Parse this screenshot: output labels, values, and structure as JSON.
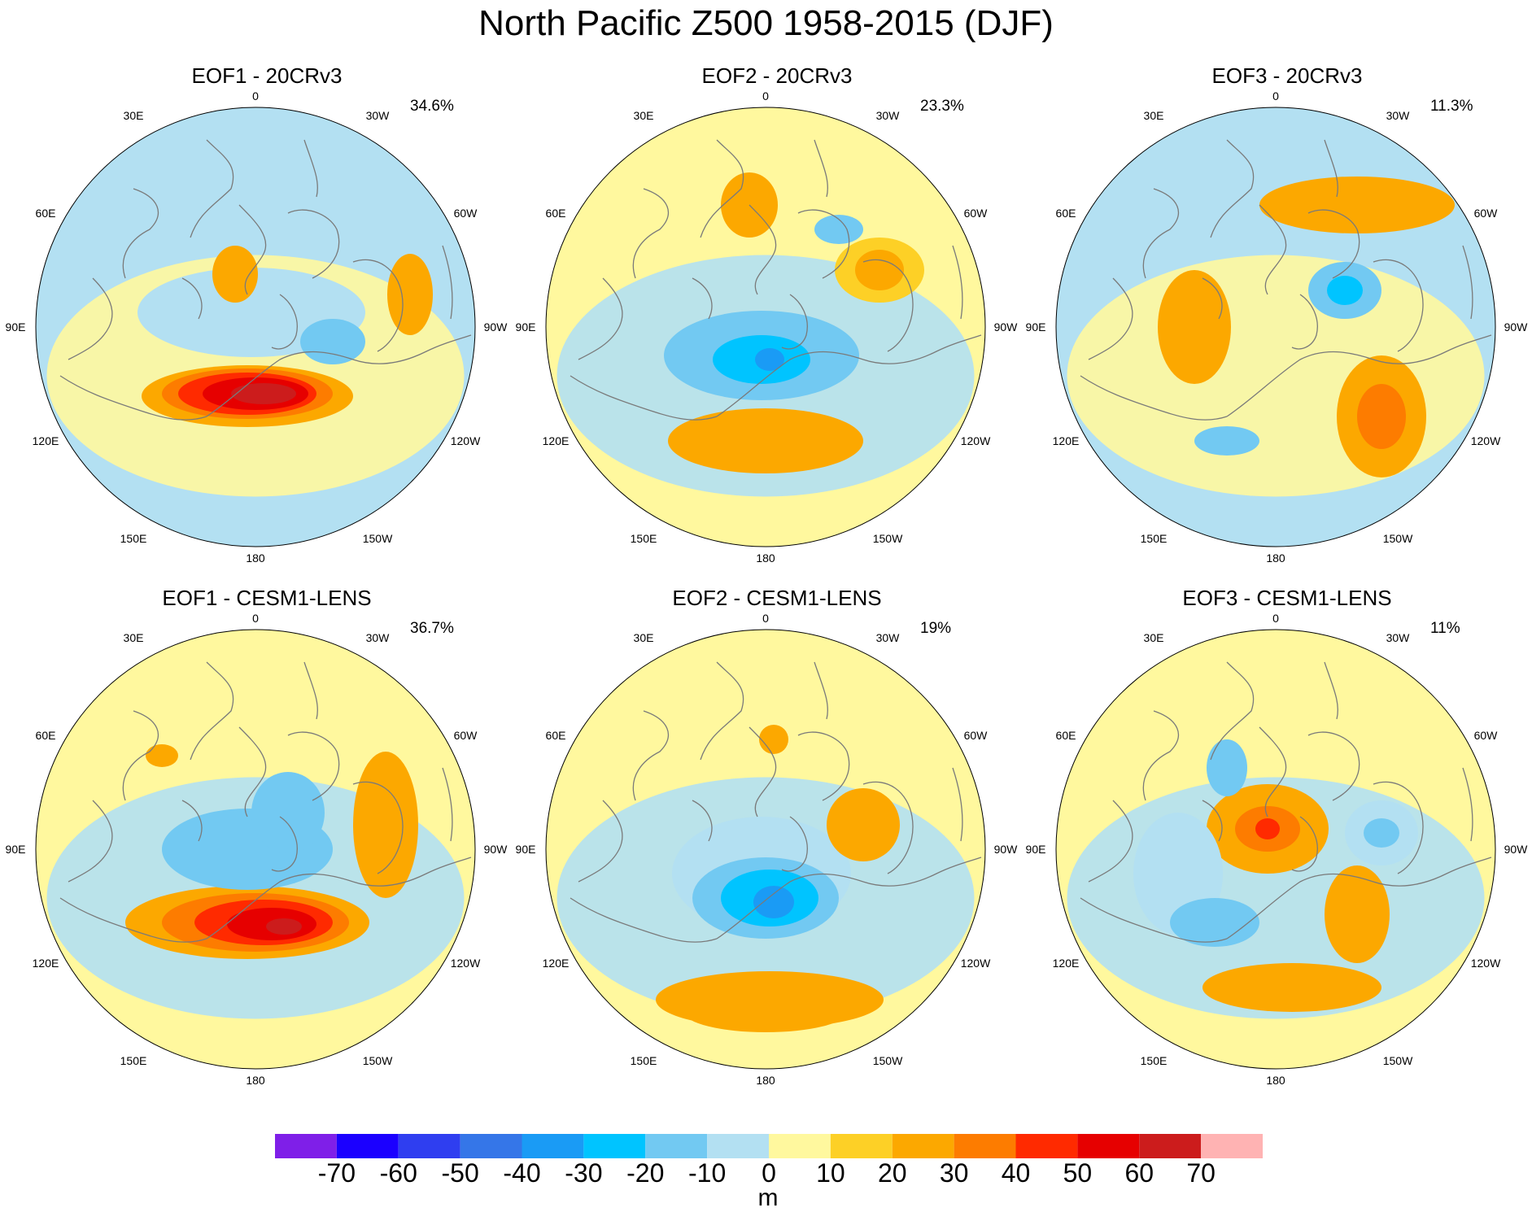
{
  "title": "North Pacific Z500 1958-2015 (DJF)",
  "lon_labels": {
    "top": "0",
    "top_left": "30E",
    "top_right": "30W",
    "left_upper": "60E",
    "right_upper": "60W",
    "left": "90E",
    "right": "90W",
    "left_lower": "120E",
    "right_lower": "120W",
    "bottom_left": "150E",
    "bottom_right": "150W",
    "bottom": "180"
  },
  "panels": [
    {
      "title": "EOF1 - 20CRv3",
      "variance": "34.6%",
      "blobs": [
        {
          "cx": -10,
          "cy": 85,
          "rx": 130,
          "ry": 38,
          "level": 20
        },
        {
          "cx": -10,
          "cy": 82,
          "rx": 105,
          "ry": 31,
          "level": 30
        },
        {
          "cx": -10,
          "cy": 82,
          "rx": 85,
          "ry": 26,
          "level": 40
        },
        {
          "cx": 0,
          "cy": 82,
          "rx": 65,
          "ry": 20,
          "level": 50
        },
        {
          "cx": 10,
          "cy": 82,
          "rx": 40,
          "ry": 13,
          "level": 60
        },
        {
          "cx": -5,
          "cy": -18,
          "rx": 140,
          "ry": 55,
          "level": -10
        },
        {
          "cx": 95,
          "cy": 18,
          "rx": 40,
          "ry": 28,
          "level": -20
        },
        {
          "cx": -25,
          "cy": -65,
          "rx": 28,
          "ry": 35,
          "level": 20
        },
        {
          "cx": 190,
          "cy": -40,
          "rx": 28,
          "ry": 50,
          "level": 20
        }
      ]
    },
    {
      "title": "EOF2 - 20CRv3",
      "variance": "23.3%",
      "blobs": [
        {
          "cx": 0,
          "cy": 140,
          "rx": 120,
          "ry": 40,
          "level": 20
        },
        {
          "cx": -5,
          "cy": 35,
          "rx": 120,
          "ry": 55,
          "level": -20
        },
        {
          "cx": -5,
          "cy": 40,
          "rx": 60,
          "ry": 30,
          "level": -30
        },
        {
          "cx": 5,
          "cy": 40,
          "rx": 18,
          "ry": 14,
          "level": -40
        },
        {
          "cx": 140,
          "cy": -70,
          "rx": 55,
          "ry": 40,
          "level": 10
        },
        {
          "cx": 140,
          "cy": -70,
          "rx": 30,
          "ry": 25,
          "level": 20
        },
        {
          "cx": -20,
          "cy": -150,
          "rx": 35,
          "ry": 40,
          "level": 20
        },
        {
          "cx": 90,
          "cy": -120,
          "rx": 30,
          "ry": 18,
          "level": -20
        }
      ]
    },
    {
      "title": "EOF3 - 20CRv3",
      "variance": "11.3%",
      "blobs": [
        {
          "cx": -100,
          "cy": 0,
          "rx": 45,
          "ry": 70,
          "level": 20
        },
        {
          "cx": 130,
          "cy": 110,
          "rx": 55,
          "ry": 75,
          "level": 20
        },
        {
          "cx": 130,
          "cy": 110,
          "rx": 30,
          "ry": 40,
          "level": 30
        },
        {
          "cx": 85,
          "cy": -45,
          "rx": 45,
          "ry": 35,
          "level": -20
        },
        {
          "cx": 85,
          "cy": -45,
          "rx": 22,
          "ry": 18,
          "level": -30
        },
        {
          "cx": -60,
          "cy": 140,
          "rx": 40,
          "ry": 18,
          "level": -20
        },
        {
          "cx": 100,
          "cy": -150,
          "rx": 120,
          "ry": 35,
          "level": 20
        }
      ]
    },
    {
      "title": "EOF1 - CESM1-LENS",
      "variance": "36.7%",
      "blobs": [
        {
          "cx": -10,
          "cy": 90,
          "rx": 150,
          "ry": 45,
          "level": 20
        },
        {
          "cx": 0,
          "cy": 90,
          "rx": 115,
          "ry": 36,
          "level": 30
        },
        {
          "cx": 10,
          "cy": 90,
          "rx": 85,
          "ry": 28,
          "level": 40
        },
        {
          "cx": 20,
          "cy": 92,
          "rx": 55,
          "ry": 20,
          "level": 50
        },
        {
          "cx": 35,
          "cy": 95,
          "rx": 22,
          "ry": 10,
          "level": 60
        },
        {
          "cx": -10,
          "cy": 0,
          "rx": 105,
          "ry": 50,
          "level": -20
        },
        {
          "cx": 40,
          "cy": -45,
          "rx": 45,
          "ry": 50,
          "level": -20
        },
        {
          "cx": 160,
          "cy": -30,
          "rx": 40,
          "ry": 90,
          "level": 20
        },
        {
          "cx": -115,
          "cy": -115,
          "rx": 20,
          "ry": 14,
          "level": 20
        }
      ]
    },
    {
      "title": "EOF2 - CESM1-LENS",
      "variance": "19%",
      "blobs": [
        {
          "cx": -5,
          "cy": 30,
          "rx": 110,
          "ry": 70,
          "level": -10
        },
        {
          "cx": 0,
          "cy": 60,
          "rx": 90,
          "ry": 50,
          "level": -20
        },
        {
          "cx": 5,
          "cy": 60,
          "rx": 60,
          "ry": 35,
          "level": -30
        },
        {
          "cx": 10,
          "cy": 65,
          "rx": 25,
          "ry": 20,
          "level": -40
        },
        {
          "cx": 120,
          "cy": -30,
          "rx": 45,
          "ry": 45,
          "level": 20
        },
        {
          "cx": 0,
          "cy": 200,
          "rx": 100,
          "ry": 25,
          "level": 20
        },
        {
          "cx": 5,
          "cy": 185,
          "rx": 140,
          "ry": 35,
          "level": 20
        },
        {
          "cx": 10,
          "cy": -135,
          "rx": 18,
          "ry": 18,
          "level": 20
        }
      ]
    },
    {
      "title": "EOF3 - CESM1-LENS",
      "variance": "11%",
      "blobs": [
        {
          "cx": -10,
          "cy": -25,
          "rx": 75,
          "ry": 55,
          "level": 20
        },
        {
          "cx": -10,
          "cy": -25,
          "rx": 40,
          "ry": 28,
          "level": 30
        },
        {
          "cx": -10,
          "cy": -25,
          "rx": 15,
          "ry": 13,
          "level": 40
        },
        {
          "cx": -120,
          "cy": 30,
          "rx": 55,
          "ry": 75,
          "level": -10
        },
        {
          "cx": -75,
          "cy": 90,
          "rx": 55,
          "ry": 30,
          "level": -20
        },
        {
          "cx": 130,
          "cy": -20,
          "rx": 45,
          "ry": 40,
          "level": -10
        },
        {
          "cx": 130,
          "cy": -20,
          "rx": 22,
          "ry": 18,
          "level": -20
        },
        {
          "cx": 20,
          "cy": 170,
          "rx": 110,
          "ry": 30,
          "level": 20
        },
        {
          "cx": 100,
          "cy": 80,
          "rx": 40,
          "ry": 60,
          "level": 20
        },
        {
          "cx": -60,
          "cy": -100,
          "rx": 25,
          "ry": 35,
          "level": -20
        }
      ]
    }
  ],
  "colorbar": {
    "colors": [
      "#7f1fe8",
      "#1b00ff",
      "#2f3ef0",
      "#3576e8",
      "#1a9bf5",
      "#00c4ff",
      "#72c9f2",
      "#b3e0f2",
      "#fff89e",
      "#fdd026",
      "#fca800",
      "#fd7c00",
      "#ff2a00",
      "#e60000",
      "#cc1c1c",
      "#ffb3b3"
    ],
    "labels": [
      "-70",
      "-60",
      "-50",
      "-40",
      "-30",
      "-20",
      "-10",
      "0",
      "10",
      "20",
      "30",
      "40",
      "50",
      "60",
      "70"
    ],
    "unit": "m"
  }
}
